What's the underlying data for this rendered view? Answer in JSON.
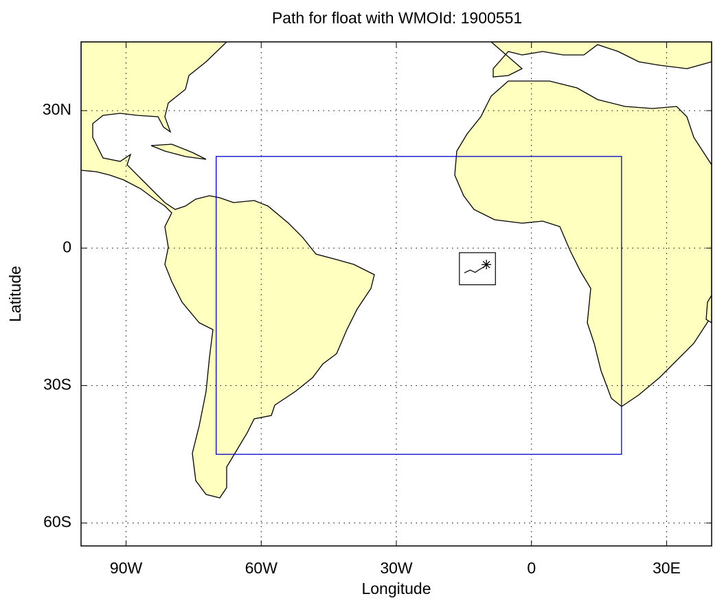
{
  "chart_data": {
    "type": "map",
    "title": "Path for float with WMOId: 1900551",
    "x_label": "Longitude",
    "y_label": "Latitude",
    "xlim": [
      -100,
      40
    ],
    "ylim": [
      -65,
      45
    ],
    "xticks": [
      {
        "value": -90,
        "label": "90W"
      },
      {
        "value": -60,
        "label": "60W"
      },
      {
        "value": -30,
        "label": "30W"
      },
      0,
      {
        "value": 30,
        "label": "30E"
      }
    ],
    "yticks": [
      {
        "value": 30,
        "label": "30N"
      },
      0,
      {
        "value": -30,
        "label": "30S"
      },
      {
        "value": -60,
        "label": "60S"
      }
    ],
    "grid": true,
    "land_color": "#ffffc0",
    "region": {
      "lon": [
        -70,
        20
      ],
      "lat": [
        -45,
        20
      ],
      "color": "#0000cc"
    },
    "inset": {
      "lon": [
        -16,
        -8
      ],
      "lat": [
        -8,
        -1
      ]
    },
    "float_track": {
      "lon": [
        -14.9,
        -13.6,
        -12.5,
        -11.6,
        -10.7,
        -10.0
      ],
      "lat": [
        -5.4,
        -4.8,
        -5.3,
        -4.7,
        -4.2,
        -3.6
      ],
      "color": "#000000"
    }
  }
}
